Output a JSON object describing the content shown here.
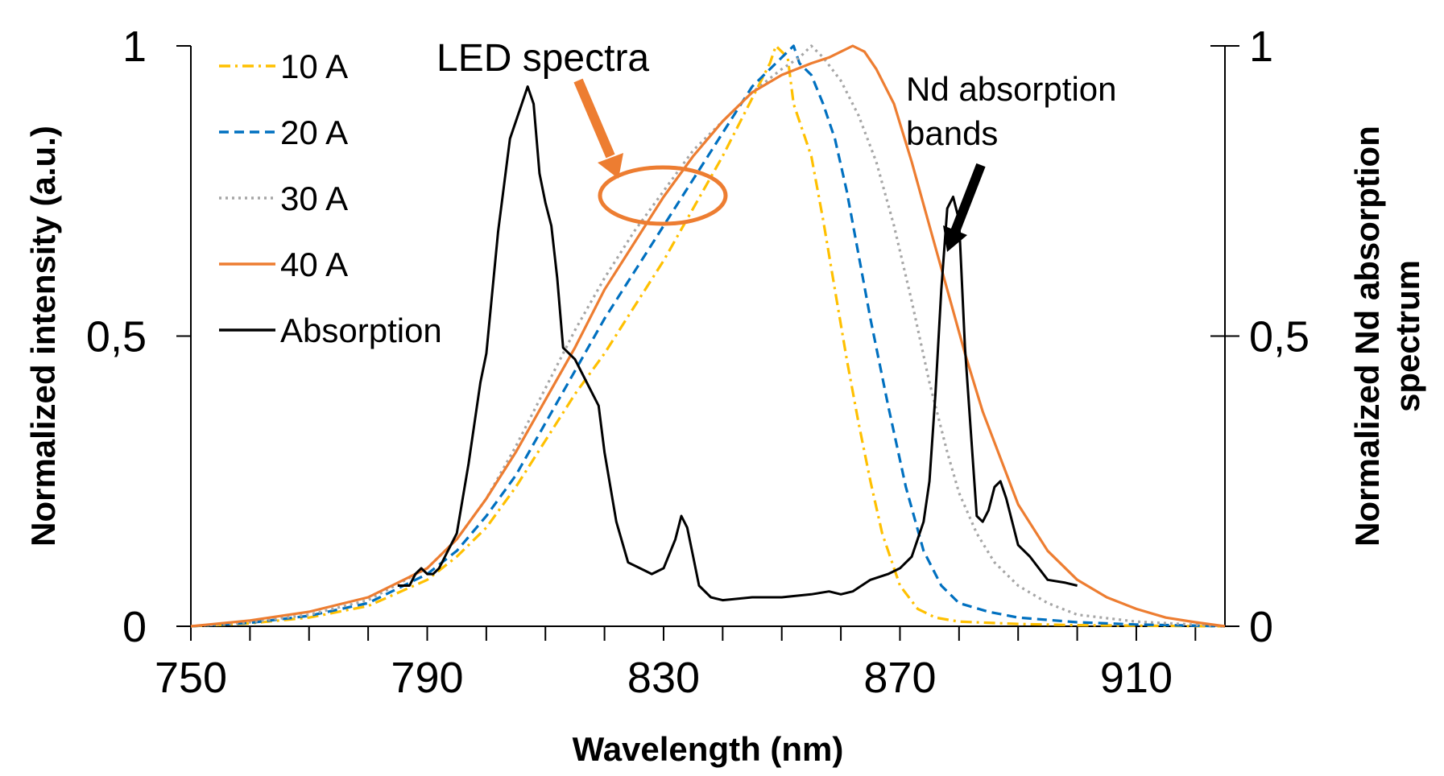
{
  "chart_data": {
    "type": "line",
    "xlabel": "Wavelength (nm)",
    "ylabel_left": "Normalized intensity (a.u.)",
    "ylabel_right_line1": "Normalized Nd absorption",
    "ylabel_right_line2": "spectrum",
    "xlim": [
      750,
      925
    ],
    "ylim": [
      0,
      1
    ],
    "xticks": [
      750,
      790,
      830,
      870,
      910
    ],
    "xtick_labels": [
      "750",
      "790",
      "830",
      "870",
      "910"
    ],
    "yticks": [
      0,
      0.5,
      1
    ],
    "ytick_labels_left": [
      "0",
      "0,5",
      "1"
    ],
    "ytick_labels_right": [
      "0",
      "0,5",
      "1"
    ],
    "grid": false,
    "legend_position": "top-left",
    "series": [
      {
        "name": "10 A",
        "color": "#FFC000",
        "dash": "dash-dot",
        "x": [
          750,
          760,
          770,
          780,
          790,
          795,
          800,
          805,
          810,
          815,
          820,
          825,
          830,
          835,
          840,
          843,
          846,
          848,
          849,
          850,
          851,
          852,
          853,
          855,
          857,
          859,
          861,
          863,
          865,
          867,
          870,
          873,
          876,
          880,
          890,
          900,
          910,
          925
        ],
        "values": [
          0,
          0.005,
          0.015,
          0.035,
          0.08,
          0.12,
          0.17,
          0.24,
          0.32,
          0.4,
          0.47,
          0.55,
          0.63,
          0.72,
          0.81,
          0.87,
          0.93,
          0.97,
          1.0,
          0.99,
          0.98,
          0.9,
          0.87,
          0.81,
          0.7,
          0.58,
          0.46,
          0.35,
          0.25,
          0.16,
          0.07,
          0.03,
          0.015,
          0.008,
          0.004,
          0.002,
          0.001,
          0
        ]
      },
      {
        "name": "20 A",
        "color": "#0070C0",
        "dash": "dash",
        "x": [
          750,
          760,
          770,
          780,
          790,
          795,
          800,
          805,
          810,
          815,
          820,
          825,
          830,
          835,
          840,
          845,
          850,
          852,
          853,
          855,
          857,
          859,
          861,
          863,
          865,
          868,
          871,
          874,
          877,
          880,
          885,
          890,
          900,
          910,
          925
        ],
        "values": [
          0,
          0.006,
          0.018,
          0.04,
          0.09,
          0.13,
          0.19,
          0.26,
          0.35,
          0.44,
          0.53,
          0.61,
          0.69,
          0.77,
          0.85,
          0.93,
          0.98,
          1.0,
          0.97,
          0.95,
          0.9,
          0.84,
          0.75,
          0.64,
          0.53,
          0.38,
          0.24,
          0.13,
          0.07,
          0.04,
          0.025,
          0.015,
          0.007,
          0.003,
          0
        ]
      },
      {
        "name": "30 A",
        "color": "#A6A6A6",
        "dash": "dot",
        "x": [
          750,
          760,
          770,
          780,
          790,
          795,
          800,
          805,
          810,
          815,
          820,
          825,
          830,
          835,
          840,
          845,
          850,
          853,
          855,
          857,
          860,
          863,
          866,
          869,
          872,
          875,
          878,
          880,
          883,
          886,
          890,
          895,
          900,
          910,
          925
        ],
        "values": [
          0,
          0.007,
          0.02,
          0.045,
          0.1,
          0.15,
          0.22,
          0.31,
          0.41,
          0.51,
          0.6,
          0.68,
          0.75,
          0.82,
          0.87,
          0.92,
          0.96,
          0.98,
          1.0,
          0.98,
          0.94,
          0.88,
          0.8,
          0.69,
          0.56,
          0.42,
          0.3,
          0.23,
          0.16,
          0.11,
          0.07,
          0.04,
          0.02,
          0.008,
          0
        ]
      },
      {
        "name": "40 A",
        "color": "#ED7D31",
        "dash": "solid",
        "x": [
          750,
          760,
          770,
          780,
          790,
          795,
          800,
          805,
          810,
          815,
          820,
          825,
          830,
          835,
          840,
          845,
          850,
          855,
          858,
          860,
          862,
          864,
          866,
          869,
          872,
          875,
          878,
          881,
          884,
          887,
          890,
          895,
          900,
          905,
          910,
          915,
          920,
          925
        ],
        "values": [
          0,
          0.01,
          0.025,
          0.05,
          0.1,
          0.15,
          0.22,
          0.3,
          0.39,
          0.48,
          0.58,
          0.66,
          0.74,
          0.81,
          0.87,
          0.92,
          0.95,
          0.97,
          0.98,
          0.99,
          1.0,
          0.99,
          0.96,
          0.9,
          0.8,
          0.69,
          0.58,
          0.47,
          0.37,
          0.29,
          0.21,
          0.13,
          0.08,
          0.05,
          0.03,
          0.015,
          0.007,
          0
        ]
      },
      {
        "name": "Absorption",
        "color": "#000000",
        "dash": "solid",
        "x": [
          785,
          787,
          788,
          789,
          790,
          791,
          792,
          793,
          795,
          797,
          799,
          800,
          802,
          804,
          806,
          807,
          808,
          809,
          810,
          811,
          812,
          813,
          815,
          817,
          819,
          820,
          822,
          824,
          826,
          827,
          828,
          830,
          832,
          833,
          834,
          835,
          836,
          838,
          840,
          845,
          850,
          855,
          858,
          860,
          862,
          865,
          868,
          870,
          872,
          874,
          875,
          876,
          877,
          878,
          879,
          880,
          881,
          883,
          884,
          885,
          886,
          887,
          888,
          890,
          892,
          895,
          898,
          900
        ],
        "values": [
          0.07,
          0.07,
          0.09,
          0.1,
          0.09,
          0.09,
          0.1,
          0.12,
          0.16,
          0.28,
          0.42,
          0.47,
          0.68,
          0.84,
          0.9,
          0.93,
          0.9,
          0.78,
          0.73,
          0.69,
          0.6,
          0.48,
          0.46,
          0.42,
          0.38,
          0.3,
          0.18,
          0.11,
          0.1,
          0.095,
          0.09,
          0.1,
          0.15,
          0.19,
          0.17,
          0.12,
          0.07,
          0.05,
          0.045,
          0.05,
          0.05,
          0.055,
          0.06,
          0.055,
          0.06,
          0.08,
          0.09,
          0.1,
          0.12,
          0.18,
          0.25,
          0.4,
          0.58,
          0.72,
          0.74,
          0.7,
          0.48,
          0.19,
          0.18,
          0.2,
          0.24,
          0.25,
          0.22,
          0.14,
          0.12,
          0.08,
          0.075,
          0.07
        ]
      }
    ],
    "annotations": [
      {
        "text": "LED spectra",
        "target_x": 831,
        "target_y": 0.73
      },
      {
        "text_line1": "Nd absorption",
        "text_line2": "bands",
        "target_x": 879,
        "target_y": 0.65
      }
    ]
  }
}
